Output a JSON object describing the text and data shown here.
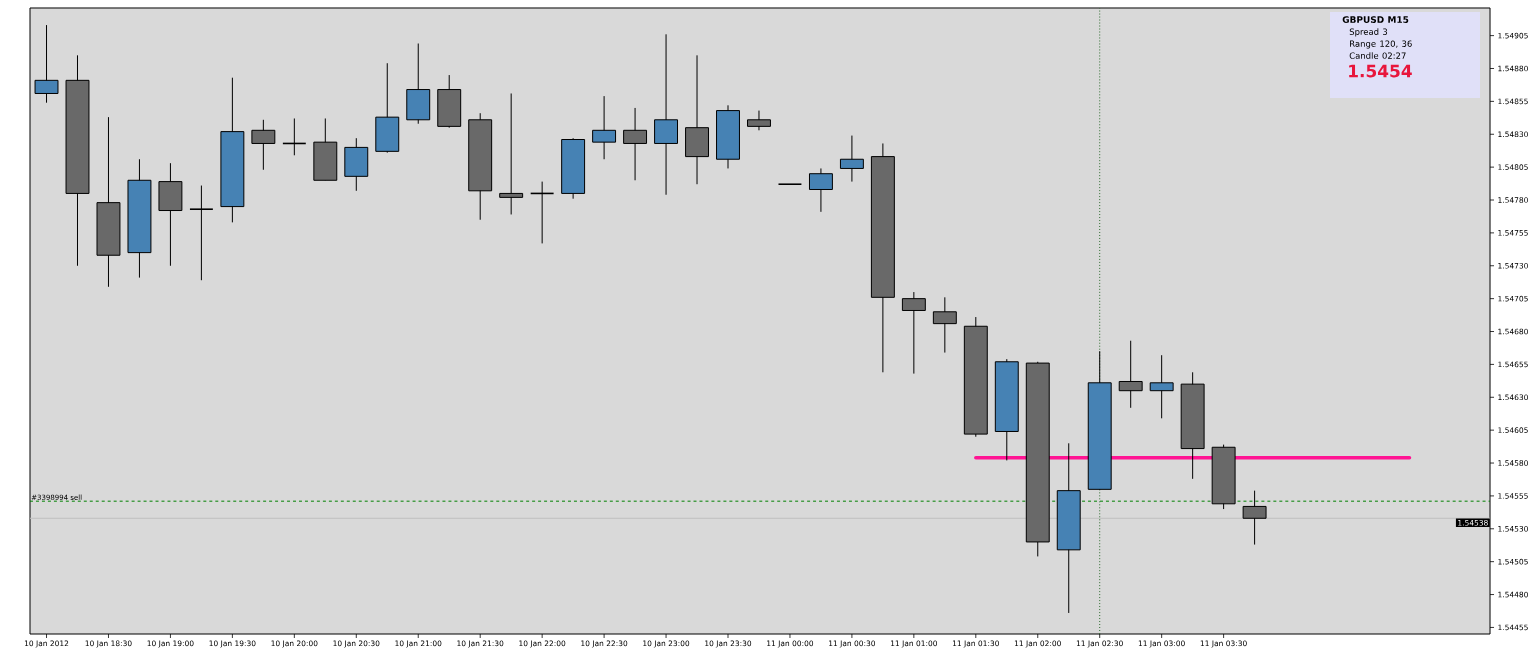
{
  "chart_data": {
    "type": "candlestick",
    "title": "GBPUSD   M15",
    "annotations": [
      "Spread  3",
      "Range  120, 36",
      "Candle  02:27",
      "1.5454"
    ],
    "x": [
      "2012-01-10T18:00",
      "2012-01-10T18:15",
      "2012-01-10T18:30",
      "2012-01-10T18:45",
      "2012-01-10T19:00",
      "2012-01-10T19:15",
      "2012-01-10T19:30",
      "2012-01-10T19:45",
      "2012-01-10T20:00",
      "2012-01-10T20:15",
      "2012-01-10T20:30",
      "2012-01-10T20:45",
      "2012-01-10T21:00",
      "2012-01-10T21:15",
      "2012-01-10T21:30",
      "2012-01-10T21:45",
      "2012-01-10T22:00",
      "2012-01-10T22:15",
      "2012-01-10T22:30",
      "2012-01-10T22:45",
      "2012-01-10T23:00",
      "2012-01-10T23:15",
      "2012-01-10T23:30",
      "2012-01-10T23:45",
      "2012-01-11T00:00",
      "2012-01-11T00:15",
      "2012-01-11T00:30",
      "2012-01-11T00:45",
      "2012-01-11T01:00",
      "2012-01-11T01:15",
      "2012-01-11T01:30",
      "2012-01-11T01:45",
      "2012-01-11T02:00",
      "2012-01-11T02:15",
      "2012-01-11T02:30",
      "2012-01-11T02:45",
      "2012-01-11T03:00",
      "2012-01-11T03:15",
      "2012-01-11T03:30",
      "2012-01-11T03:45"
    ],
    "ohlc": [
      [
        1.54861,
        1.54913,
        1.54854,
        1.54871
      ],
      [
        1.54871,
        1.5489,
        1.5473,
        1.54785
      ],
      [
        1.54778,
        1.54843,
        1.54714,
        1.54738
      ],
      [
        1.5474,
        1.54811,
        1.54721,
        1.54795
      ],
      [
        1.54794,
        1.54808,
        1.5473,
        1.54772
      ],
      [
        1.54773,
        1.54791,
        1.54719,
        1.54773
      ],
      [
        1.54775,
        1.54873,
        1.54763,
        1.54832
      ],
      [
        1.54833,
        1.54841,
        1.54803,
        1.54823
      ],
      [
        1.54823,
        1.54842,
        1.54814,
        1.54823
      ],
      [
        1.54824,
        1.54842,
        1.54795,
        1.54795
      ],
      [
        1.54798,
        1.54827,
        1.54787,
        1.5482
      ],
      [
        1.54817,
        1.54884,
        1.54816,
        1.54843
      ],
      [
        1.54841,
        1.54899,
        1.54838,
        1.54864
      ],
      [
        1.54864,
        1.54875,
        1.54835,
        1.54836
      ],
      [
        1.54841,
        1.54846,
        1.54765,
        1.54787
      ],
      [
        1.54785,
        1.54861,
        1.54769,
        1.54782
      ],
      [
        1.54785,
        1.54794,
        1.54747,
        1.54785
      ],
      [
        1.54785,
        1.54827,
        1.54781,
        1.54826
      ],
      [
        1.54824,
        1.54859,
        1.54811,
        1.54833
      ],
      [
        1.54833,
        1.5485,
        1.54795,
        1.54823
      ],
      [
        1.54823,
        1.54906,
        1.54784,
        1.54841
      ],
      [
        1.54835,
        1.5489,
        1.54792,
        1.54813
      ],
      [
        1.54811,
        1.54852,
        1.54804,
        1.54848
      ],
      [
        1.54841,
        1.54848,
        1.54833,
        1.54836
      ],
      [
        1.54792,
        1.54792,
        1.54792,
        1.54792
      ],
      [
        1.54788,
        1.54804,
        1.54771,
        1.548
      ],
      [
        1.54804,
        1.54829,
        1.54794,
        1.54811
      ],
      [
        1.54813,
        1.54823,
        1.54649,
        1.54706
      ],
      [
        1.54705,
        1.5471,
        1.54648,
        1.54696
      ],
      [
        1.54695,
        1.54706,
        1.54664,
        1.54686
      ],
      [
        1.54684,
        1.54691,
        1.546,
        1.54602
      ],
      [
        1.54604,
        1.54659,
        1.54582,
        1.54657
      ],
      [
        1.54656,
        1.54657,
        1.54509,
        1.5452
      ],
      [
        1.54514,
        1.54595,
        1.54466,
        1.54559
      ],
      [
        1.5456,
        1.54665,
        1.5456,
        1.54641
      ],
      [
        1.54642,
        1.54673,
        1.54622,
        1.54635
      ],
      [
        1.54635,
        1.54662,
        1.54614,
        1.54641
      ],
      [
        1.5464,
        1.54649,
        1.54568,
        1.54591
      ],
      [
        1.54592,
        1.54594,
        1.54545,
        1.54549
      ],
      [
        1.54547,
        1.54559,
        1.54518,
        1.54538
      ]
    ],
    "colors": [
      "#4682b4",
      "#696969",
      "#696969",
      "#4682b4",
      "#696969",
      "#000000",
      "#4682b4",
      "#696969",
      "#000000",
      "#696969",
      "#4682b4",
      "#4682b4",
      "#4682b4",
      "#696969",
      "#696969",
      "#696969",
      "#000000",
      "#4682b4",
      "#4682b4",
      "#696969",
      "#4682b4",
      "#696969",
      "#4682b4",
      "#696969",
      "#000000",
      "#4682b4",
      "#4682b4",
      "#696969",
      "#696969",
      "#696969",
      "#696969",
      "#4682b4",
      "#696969",
      "#4682b4",
      "#4682b4",
      "#696969",
      "#4682b4",
      "#696969",
      "#696969",
      "#696969"
    ],
    "series": [
      {
        "type": "line",
        "x": [
          "2012-01-11T01:30",
          "2012-01-11T05:00"
        ],
        "values": [
          1.54584,
          1.54584
        ],
        "color": "#ff1493"
      }
    ],
    "ref_lines": [
      {
        "axis": "y",
        "value": 1.54551,
        "label": "#3398994 sell",
        "color": "#008000",
        "line_style": "dashed"
      },
      {
        "axis": "y",
        "value": 1.54538,
        "label": "1.54538",
        "color": "#c0c0c0",
        "line_style": "solid"
      },
      {
        "axis": "x",
        "value": "2012-01-11T02:30",
        "color": "#2e6b2e",
        "line_style": "dotted"
      }
    ],
    "xlim": [
      "2012-01-10T17:52",
      "2012-01-11T05:39"
    ],
    "ylim": [
      1.5445,
      1.54926
    ],
    "xticks": [
      {
        "value": "2012-01-10T18:00",
        "label": "10 Jan 2012"
      },
      {
        "value": "2012-01-10T18:30",
        "label": "10 Jan 18:30"
      },
      {
        "value": "2012-01-10T19:00",
        "label": "10 Jan 19:00"
      },
      {
        "value": "2012-01-10T19:30",
        "label": "10 Jan 19:30"
      },
      {
        "value": "2012-01-10T20:00",
        "label": "10 Jan 20:00"
      },
      {
        "value": "2012-01-10T20:30",
        "label": "10 Jan 20:30"
      },
      {
        "value": "2012-01-10T21:00",
        "label": "10 Jan 21:00"
      },
      {
        "value": "2012-01-10T21:30",
        "label": "10 Jan 21:30"
      },
      {
        "value": "2012-01-10T22:00",
        "label": "10 Jan 22:00"
      },
      {
        "value": "2012-01-10T22:30",
        "label": "10 Jan 22:30"
      },
      {
        "value": "2012-01-10T23:00",
        "label": "10 Jan 23:00"
      },
      {
        "value": "2012-01-10T23:30",
        "label": "10 Jan 23:30"
      },
      {
        "value": "2012-01-11T00:00",
        "label": "11 Jan 00:00"
      },
      {
        "value": "2012-01-11T00:30",
        "label": "11 Jan 00:30"
      },
      {
        "value": "2012-01-11T01:00",
        "label": "11 Jan 01:00"
      },
      {
        "value": "2012-01-11T01:30",
        "label": "11 Jan 01:30"
      },
      {
        "value": "2012-01-11T02:00",
        "label": "11 Jan 02:00"
      },
      {
        "value": "2012-01-11T02:30",
        "label": "11 Jan 02:30"
      },
      {
        "value": "2012-01-11T03:00",
        "label": "11 Jan 03:00"
      },
      {
        "value": "2012-01-11T03:30",
        "label": "11 Jan 03:30"
      }
    ],
    "yticks": [
      1.54455,
      {
        "value": 1.5448,
        "label": "1.54480"
      },
      1.54505,
      {
        "value": 1.5453,
        "label": "1.54530"
      },
      1.54555,
      {
        "value": 1.5458,
        "label": "1.54580"
      },
      1.54605,
      {
        "value": 1.5463,
        "label": "1.54630"
      },
      1.54655,
      {
        "value": 1.5468,
        "label": "1.54680"
      },
      1.54705,
      {
        "value": 1.5473,
        "label": "1.54730"
      },
      1.54755,
      {
        "value": 1.5478,
        "label": "1.54780"
      },
      1.54805,
      {
        "value": 1.5483,
        "label": "1.54830"
      },
      1.54855,
      {
        "value": 1.5488,
        "label": "1.54880"
      },
      1.54905
    ]
  }
}
